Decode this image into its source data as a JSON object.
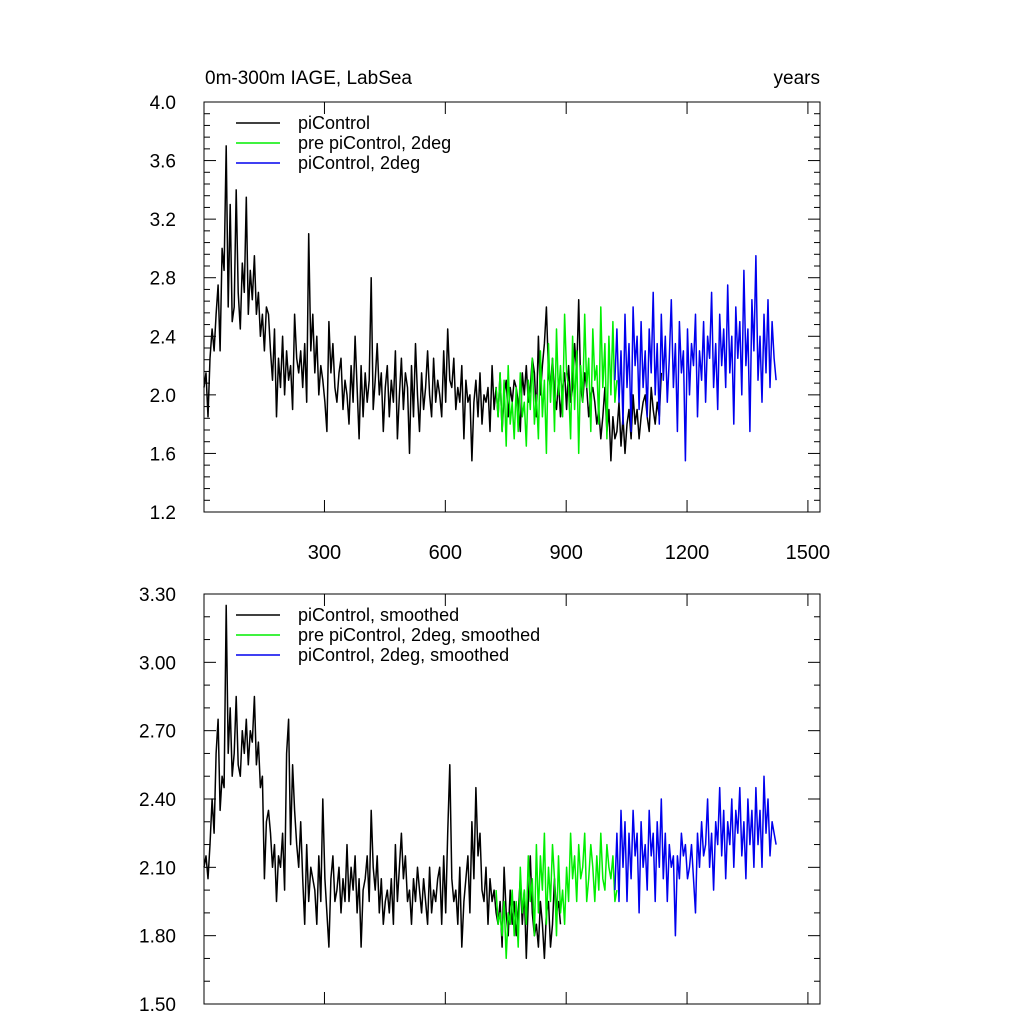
{
  "chart_data": [
    {
      "type": "line",
      "title_left": "0m-300m IAGE, LabSea",
      "title_right": "years",
      "xlabel": "",
      "ylabel": "",
      "xlim": [
        1,
        1530
      ],
      "ylim": [
        1.2,
        4.0
      ],
      "x_ticks": [
        300,
        600,
        900,
        1200,
        1500
      ],
      "x_tick_labels": [
        "300",
        "600",
        "900",
        "1200",
        "1500"
      ],
      "y_ticks": [
        1.2,
        1.6,
        2.0,
        2.4,
        2.8,
        3.2,
        3.6,
        4.0
      ],
      "y_tick_labels": [
        "1.2",
        "1.6",
        "2.0",
        "2.4",
        "2.8",
        "3.2",
        "3.6",
        "4.0"
      ],
      "legend_position": "top-left",
      "series": [
        {
          "name": "piControl",
          "color": "#000000",
          "x_start": 1,
          "x_step": 5,
          "values": [
            2.05,
            2.15,
            1.85,
            2.25,
            2.45,
            2.3,
            2.55,
            2.75,
            2.3,
            3.0,
            2.85,
            3.7,
            2.6,
            3.3,
            2.5,
            2.6,
            3.4,
            2.7,
            2.45,
            2.9,
            2.7,
            3.35,
            2.55,
            2.85,
            2.65,
            2.95,
            2.55,
            2.7,
            2.4,
            2.55,
            2.3,
            2.6,
            2.55,
            2.3,
            2.1,
            2.45,
            1.85,
            2.25,
            2.05,
            2.4,
            2.0,
            2.3,
            2.1,
            2.2,
            1.9,
            2.55,
            2.25,
            2.15,
            2.3,
            2.05,
            2.35,
            1.95,
            3.1,
            2.3,
            2.55,
            2.15,
            2.4,
            2.0,
            2.2,
            2.1,
            1.95,
            1.75,
            2.5,
            2.15,
            2.35,
            2.05,
            1.95,
            2.15,
            2.25,
            1.9,
            2.1,
            2.0,
            1.8,
            2.2,
            1.95,
            2.4,
            2.05,
            1.7,
            2.2,
            1.85,
            2.15,
            1.95,
            2.1,
            2.8,
            1.9,
            2.1,
            2.35,
            2.0,
            2.15,
            1.75,
            2.05,
            2.2,
            1.85,
            2.1,
            1.95,
            2.3,
            1.7,
            2.0,
            2.25,
            1.9,
            2.15,
            2.05,
            1.6,
            2.2,
            1.85,
            2.35,
            2.0,
            1.75,
            2.15,
            1.9,
            2.05,
            2.3,
            2.0,
            1.85,
            2.25,
            1.95,
            2.1,
            2.0,
            1.85,
            2.3,
            1.95,
            2.45,
            2.1,
            2.05,
            2.25,
            1.9,
            2.05,
            1.95,
            2.2,
            1.7,
            2.1,
            1.95,
            2.0,
            1.55,
            1.95,
            2.1,
            1.85,
            2.15,
            1.8,
            2.0,
            1.95,
            2.05,
            1.75,
            2.2,
            1.9,
            2.05,
            1.85,
            2.15,
            1.75,
            2.0,
            2.1,
            1.85,
            2.05,
            1.95,
            2.1,
            2.05,
            1.95,
            1.75,
            2.15,
            2.0,
            2.2,
            1.95,
            2.05,
            2.25,
            2.15,
            1.85,
            2.4,
            2.0,
            2.2,
            2.35,
            2.6,
            2.15,
            2.05,
            2.25,
            2.0,
            1.9,
            2.1,
            1.85,
            2.05,
            2.15,
            1.9,
            2.2,
            1.95,
            2.05,
            2.35,
            2.15,
            2.65,
            2.05,
            1.95,
            2.15,
            2.05,
            1.85,
            2.0,
            2.05,
            1.95,
            1.8,
            1.9,
            1.7,
            1.85,
            2.05,
            1.75,
            1.9,
            1.55,
            1.85,
            1.7,
            1.75,
            1.95,
            1.65,
            1.85,
            1.6,
            1.8,
            1.9,
            1.7,
            2.0,
            1.8,
            1.9,
            1.7,
            1.85,
            1.95,
            2.0,
            1.85,
            1.75,
            2.05,
            1.9,
            1.8,
            1.95,
            1.85,
            2.15
          ]
        },
        {
          "name": "pre piControl, 2deg",
          "color": "#00ee00",
          "x_start": 726,
          "x_step": 5,
          "values": [
            2.05,
            1.85,
            2.15,
            1.75,
            2.1,
            1.65,
            2.2,
            1.8,
            1.95,
            1.7,
            2.05,
            1.75,
            2.15,
            1.85,
            1.95,
            1.65,
            2.1,
            1.9,
            2.25,
            1.8,
            2.0,
            1.7,
            2.3,
            1.85,
            2.1,
            1.6,
            2.35,
            1.95,
            2.25,
            1.75,
            2.45,
            2.0,
            2.2,
            1.85,
            2.55,
            2.15,
            2.05,
            1.7,
            2.4,
            1.9,
            2.3,
            1.6,
            2.2,
            1.95,
            2.55,
            2.05,
            2.25,
            1.75,
            2.45,
            2.1,
            2.2,
            1.8,
            2.6,
            2.05,
            2.35,
            1.7,
            2.4,
            2.0,
            2.5,
            1.95,
            2.1
          ]
        },
        {
          "name": "piControl, 2deg",
          "color": "#0000ee",
          "x_start": 1021,
          "x_step": 5,
          "values": [
            2.1,
            2.45,
            1.95,
            2.3,
            1.8,
            2.55,
            2.05,
            2.35,
            1.75,
            2.6,
            2.2,
            2.4,
            1.9,
            2.5,
            2.05,
            2.3,
            1.85,
            2.45,
            2.15,
            2.7,
            2.0,
            2.35,
            1.8,
            2.55,
            2.1,
            2.4,
            1.95,
            2.25,
            2.65,
            2.05,
            2.35,
            1.75,
            2.5,
            2.15,
            2.3,
            1.55,
            2.45,
            2.0,
            2.35,
            2.2,
            2.55,
            1.85,
            2.3,
            2.1,
            2.5,
            1.95,
            2.4,
            2.25,
            2.7,
            2.05,
            2.35,
            1.9,
            2.55,
            2.2,
            2.45,
            2.05,
            2.75,
            2.15,
            2.4,
            1.8,
            2.6,
            2.25,
            2.5,
            2.0,
            2.85,
            2.2,
            2.45,
            1.75,
            2.65,
            2.3,
            2.95,
            2.1,
            2.4,
            1.95,
            2.55,
            2.15,
            2.65,
            2.05,
            2.5,
            2.25,
            2.1
          ]
        }
      ]
    },
    {
      "type": "line",
      "xlabel": "",
      "ylabel": "",
      "xlim": [
        1,
        1530
      ],
      "ylim": [
        1.5,
        3.3
      ],
      "x_ticks": [
        300,
        600,
        900,
        1200,
        1500
      ],
      "y_ticks": [
        1.5,
        1.8,
        2.1,
        2.4,
        2.7,
        3.0,
        3.3
      ],
      "y_tick_labels": [
        "1.50",
        "1.80",
        "2.10",
        "2.40",
        "2.70",
        "3.00",
        "3.30"
      ],
      "legend_position": "top-left",
      "series": [
        {
          "name": "piControl, smoothed",
          "color": "#000000",
          "x_start": 1,
          "x_step": 5,
          "values": [
            2.1,
            2.15,
            2.05,
            2.2,
            2.4,
            2.25,
            2.6,
            2.75,
            2.35,
            2.5,
            2.45,
            3.25,
            2.6,
            2.8,
            2.5,
            2.6,
            2.85,
            2.55,
            2.5,
            2.7,
            2.6,
            2.75,
            2.55,
            2.7,
            2.65,
            2.85,
            2.55,
            2.65,
            2.45,
            2.5,
            2.05,
            2.3,
            2.35,
            2.25,
            2.1,
            2.2,
            1.95,
            2.15,
            2.1,
            2.25,
            2.0,
            2.6,
            2.75,
            2.2,
            2.55,
            2.35,
            2.2,
            2.1,
            2.3,
            2.05,
            1.85,
            2.2,
            1.95,
            2.1,
            2.05,
            2.0,
            1.85,
            2.15,
            1.95,
            2.4,
            2.05,
            1.9,
            1.75,
            2.05,
            2.15,
            1.95,
            2.0,
            2.1,
            1.9,
            2.05,
            1.95,
            2.2,
            1.95,
            2.1,
            2.0,
            2.15,
            1.9,
            2.05,
            1.75,
            2.0,
            2.05,
            2.15,
            1.95,
            2.35,
            2.1,
            2.0,
            2.15,
            1.9,
            2.05,
            1.85,
            1.95,
            2.0,
            1.9,
            2.05,
            1.85,
            2.2,
            1.95,
            2.1,
            2.25,
            2.05,
            2.15,
            1.95,
            2.0,
            1.85,
            2.05,
            1.95,
            2.1,
            2.0,
            1.9,
            2.05,
            1.95,
            1.85,
            2.1,
            1.9,
            2.0,
            1.95,
            2.05,
            2.1,
            1.85,
            2.15,
            1.9,
            2.25,
            2.55,
            2.05,
            1.95,
            2.0,
            1.85,
            2.1,
            1.75,
            1.95,
            2.05,
            2.15,
            1.9,
            2.3,
            2.05,
            2.45,
            2.15,
            2.25,
            2.0,
            1.95,
            2.1,
            1.85,
            2.05,
            1.95,
            2.0,
            1.9,
            1.85,
            1.95,
            1.75,
            2.1,
            1.9,
            1.8,
            2.0,
            1.85,
            1.95,
            1.8,
            1.9,
            2.05,
            1.85,
            2.0,
            1.7,
            1.95,
            2.15,
            1.9,
            1.8,
            1.85,
            1.75,
            1.95,
            1.85,
            1.7,
            1.9,
            1.95,
            1.75,
            1.85,
            2.05,
            1.9,
            1.95,
            1.85
          ]
        },
        {
          "name": "pre piControl, 2deg, smoothed",
          "color": "#00ee00",
          "x_start": 726,
          "x_step": 5,
          "values": [
            2.0,
            1.85,
            1.9,
            1.8,
            1.95,
            1.7,
            1.9,
            1.85,
            2.0,
            1.8,
            1.95,
            1.75,
            2.1,
            1.9,
            2.0,
            1.85,
            2.15,
            1.95,
            2.05,
            1.8,
            2.2,
            1.9,
            2.15,
            2.0,
            2.25,
            1.85,
            2.1,
            1.95,
            2.2,
            2.05,
            1.8,
            2.15,
            1.9,
            2.0,
            1.85,
            2.1,
            1.95,
            2.25,
            2.05,
            2.15,
            1.95,
            2.2,
            2.05,
            2.1,
            2.25,
            1.95,
            2.05,
            2.2,
            2.1,
            1.95,
            2.15,
            2.0,
            2.25,
            2.05,
            2.0,
            2.2,
            2.1,
            2.05,
            2.15,
            1.95,
            2.0
          ]
        },
        {
          "name": "piControl, 2deg, smoothed",
          "color": "#0000ee",
          "x_start": 1021,
          "x_step": 5,
          "values": [
            2.0,
            2.25,
            1.95,
            2.35,
            2.1,
            2.3,
            1.95,
            2.25,
            2.05,
            2.35,
            2.15,
            2.25,
            1.9,
            2.3,
            2.1,
            2.2,
            2.0,
            2.35,
            2.15,
            2.25,
            1.95,
            2.3,
            2.1,
            2.4,
            2.05,
            2.25,
            1.95,
            2.2,
            2.1,
            2.15,
            1.8,
            2.15,
            2.05,
            2.25,
            2.15,
            2.2,
            2.05,
            2.1,
            2.2,
            2.05,
            1.9,
            2.25,
            2.1,
            2.3,
            2.15,
            2.2,
            2.4,
            2.1,
            2.25,
            2.0,
            2.3,
            2.2,
            2.45,
            2.15,
            2.35,
            2.05,
            2.3,
            2.2,
            2.4,
            2.1,
            2.35,
            2.25,
            2.45,
            2.15,
            2.3,
            2.05,
            2.4,
            2.2,
            2.35,
            2.1,
            2.45,
            2.2,
            2.35,
            2.1,
            2.5,
            2.25,
            2.4,
            2.15,
            2.3,
            2.25,
            2.2
          ]
        }
      ]
    }
  ]
}
